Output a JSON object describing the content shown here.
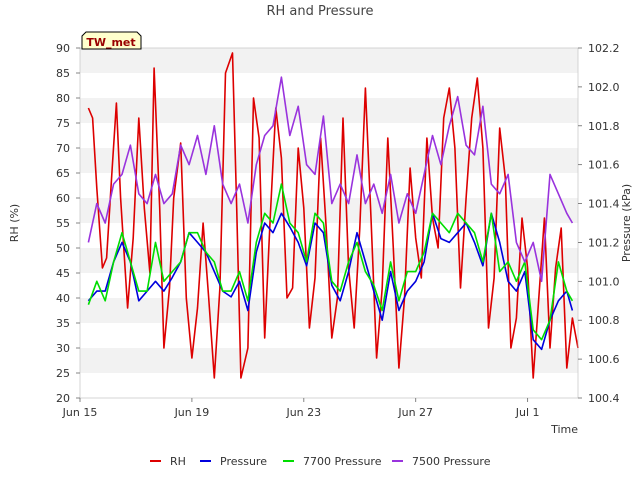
{
  "chart_data": {
    "type": "line",
    "title": "RH and Pressure",
    "site_badge": "TW_met",
    "xlabel": "Time",
    "ylabel_left": "RH (%)",
    "ylabel_right": "Pressure (kPa)",
    "x_ticks": [
      "Jun 15",
      "Jun 19",
      "Jun 23",
      "Jun 27",
      "Jul 1"
    ],
    "x_tick_days": [
      0,
      4,
      8,
      12,
      16
    ],
    "x_range_days": [
      0,
      17.8
    ],
    "y_left_range": [
      20,
      90
    ],
    "y_left_ticks": [
      20,
      25,
      30,
      35,
      40,
      45,
      50,
      55,
      60,
      65,
      70,
      75,
      80,
      85,
      90
    ],
    "y_right_range": [
      100.4,
      102.2
    ],
    "y_right_ticks": [
      "100.4",
      "100.6",
      "100.8",
      "101.0",
      "101.2",
      "101.4",
      "101.6",
      "101.8",
      "102.0",
      "102.2"
    ],
    "y_right_tick_values": [
      100.4,
      100.6,
      100.8,
      101.0,
      101.2,
      101.4,
      101.6,
      101.8,
      102.0,
      102.2
    ],
    "grid": "horizontal bands",
    "legend_position": "bottom",
    "series": [
      {
        "name": "RH",
        "axis": "left",
        "color": "#dd0000",
        "x": [
          0.3,
          0.45,
          0.6,
          0.8,
          0.95,
          1.15,
          1.3,
          1.45,
          1.7,
          1.9,
          2.1,
          2.3,
          2.5,
          2.65,
          2.85,
          3.0,
          3.2,
          3.35,
          3.6,
          3.8,
          4.0,
          4.2,
          4.4,
          4.6,
          4.8,
          5.0,
          5.2,
          5.45,
          5.6,
          5.75,
          6.0,
          6.2,
          6.4,
          6.6,
          6.8,
          7.0,
          7.2,
          7.4,
          7.6,
          7.8,
          8.0,
          8.2,
          8.4,
          8.6,
          8.8,
          9.0,
          9.2,
          9.4,
          9.6,
          9.8,
          10.0,
          10.2,
          10.4,
          10.6,
          10.8,
          11.0,
          11.2,
          11.4,
          11.6,
          11.8,
          12.0,
          12.2,
          12.4,
          12.6,
          12.8,
          13.0,
          13.2,
          13.4,
          13.6,
          13.8,
          14.0,
          14.2,
          14.4,
          14.6,
          14.8,
          15.0,
          15.2,
          15.4,
          15.6,
          15.8,
          16.0,
          16.2,
          16.4,
          16.6,
          16.8,
          17.0,
          17.2,
          17.4,
          17.6,
          17.8
        ],
        "y": [
          78,
          76,
          62,
          46,
          48,
          66,
          79,
          60,
          38,
          52,
          76,
          58,
          45,
          86,
          58,
          30,
          42,
          60,
          71,
          40,
          28,
          38,
          55,
          40,
          24,
          42,
          85,
          89,
          58,
          24,
          30,
          80,
          72,
          32,
          56,
          78,
          68,
          40,
          42,
          70,
          58,
          34,
          44,
          72,
          54,
          32,
          40,
          76,
          46,
          34,
          54,
          82,
          56,
          28,
          42,
          72,
          50,
          26,
          40,
          66,
          52,
          44,
          72,
          56,
          50,
          76,
          82,
          70,
          42,
          60,
          76,
          84,
          70,
          34,
          44,
          74,
          64,
          30,
          36,
          56,
          46,
          24,
          40,
          56,
          30,
          46,
          54,
          26,
          36,
          30
        ]
      },
      {
        "name": "Pressure",
        "axis": "right",
        "color": "#0000dd",
        "x": [
          0.3,
          0.6,
          0.9,
          1.2,
          1.5,
          1.8,
          2.1,
          2.4,
          2.7,
          3.0,
          3.3,
          3.6,
          3.9,
          4.2,
          4.5,
          4.8,
          5.1,
          5.4,
          5.7,
          6.0,
          6.3,
          6.6,
          6.9,
          7.2,
          7.5,
          7.8,
          8.1,
          8.4,
          8.7,
          9.0,
          9.3,
          9.6,
          9.9,
          10.2,
          10.5,
          10.8,
          11.1,
          11.4,
          11.7,
          12.0,
          12.3,
          12.6,
          12.9,
          13.2,
          13.5,
          13.8,
          14.1,
          14.4,
          14.7,
          15.0,
          15.3,
          15.6,
          15.9,
          16.2,
          16.5,
          16.8,
          17.1,
          17.4,
          17.6
        ],
        "y": [
          100.9,
          100.95,
          100.95,
          101.1,
          101.2,
          101.1,
          100.9,
          100.95,
          101.0,
          100.95,
          101.02,
          101.1,
          101.25,
          101.2,
          101.15,
          101.05,
          100.95,
          100.92,
          101.0,
          100.85,
          101.15,
          101.3,
          101.25,
          101.35,
          101.28,
          101.2,
          101.08,
          101.3,
          101.25,
          100.98,
          100.9,
          101.05,
          101.25,
          101.1,
          100.95,
          100.8,
          101.05,
          100.85,
          100.95,
          101.0,
          101.1,
          101.35,
          101.22,
          101.2,
          101.25,
          101.3,
          101.2,
          101.08,
          101.35,
          101.2,
          101.0,
          100.95,
          101.05,
          100.7,
          100.65,
          100.8,
          100.9,
          100.95,
          100.85
        ]
      },
      {
        "name": "7700 Pressure",
        "axis": "right",
        "color": "#00dd00",
        "x": [
          0.3,
          0.6,
          0.9,
          1.2,
          1.5,
          1.8,
          2.1,
          2.4,
          2.7,
          3.0,
          3.3,
          3.6,
          3.9,
          4.2,
          4.5,
          4.8,
          5.1,
          5.4,
          5.7,
          6.0,
          6.3,
          6.6,
          6.9,
          7.2,
          7.5,
          7.8,
          8.1,
          8.4,
          8.7,
          9.0,
          9.3,
          9.6,
          9.9,
          10.2,
          10.5,
          10.8,
          11.1,
          11.4,
          11.7,
          12.0,
          12.3,
          12.6,
          12.9,
          13.2,
          13.5,
          13.8,
          14.1,
          14.4,
          14.7,
          15.0,
          15.3,
          15.6,
          15.9,
          16.2,
          16.5,
          16.8,
          17.1,
          17.4,
          17.6
        ],
        "y": [
          100.88,
          101.0,
          100.9,
          101.1,
          101.25,
          101.1,
          100.95,
          100.95,
          101.2,
          101.0,
          101.05,
          101.1,
          101.25,
          101.25,
          101.15,
          101.1,
          100.95,
          100.95,
          101.05,
          100.9,
          101.2,
          101.35,
          101.3,
          101.5,
          101.3,
          101.25,
          101.1,
          101.35,
          101.3,
          101.0,
          100.95,
          101.1,
          101.2,
          101.05,
          100.98,
          100.85,
          101.1,
          100.9,
          101.05,
          101.05,
          101.15,
          101.35,
          101.3,
          101.25,
          101.35,
          101.3,
          101.25,
          101.1,
          101.35,
          101.05,
          101.1,
          101.0,
          101.1,
          100.75,
          100.7,
          100.8,
          101.1,
          100.95,
          100.9
        ]
      },
      {
        "name": "7500 Pressure",
        "axis": "right",
        "color": "#9933dd",
        "x": [
          0.3,
          0.6,
          0.9,
          1.2,
          1.5,
          1.8,
          2.1,
          2.4,
          2.7,
          3.0,
          3.3,
          3.6,
          3.9,
          4.2,
          4.5,
          4.8,
          5.1,
          5.4,
          5.7,
          6.0,
          6.3,
          6.6,
          6.9,
          7.2,
          7.5,
          7.8,
          8.1,
          8.4,
          8.7,
          9.0,
          9.3,
          9.6,
          9.9,
          10.2,
          10.5,
          10.8,
          11.1,
          11.4,
          11.7,
          12.0,
          12.3,
          12.6,
          12.9,
          13.2,
          13.5,
          13.8,
          14.1,
          14.4,
          14.7,
          15.0,
          15.3,
          15.6,
          15.9,
          16.2,
          16.5,
          16.8,
          17.1,
          17.4,
          17.6
        ],
        "y": [
          101.2,
          101.4,
          101.3,
          101.5,
          101.55,
          101.7,
          101.45,
          101.4,
          101.55,
          101.4,
          101.45,
          101.7,
          101.6,
          101.75,
          101.55,
          101.8,
          101.5,
          101.4,
          101.5,
          101.3,
          101.6,
          101.75,
          101.8,
          102.05,
          101.75,
          101.9,
          101.6,
          101.55,
          101.85,
          101.4,
          101.5,
          101.4,
          101.65,
          101.4,
          101.5,
          101.35,
          101.55,
          101.3,
          101.45,
          101.35,
          101.55,
          101.75,
          101.6,
          101.8,
          101.95,
          101.7,
          101.65,
          101.9,
          101.5,
          101.45,
          101.55,
          101.2,
          101.1,
          101.2,
          101.0,
          101.55,
          101.45,
          101.35,
          101.3
        ]
      }
    ]
  }
}
